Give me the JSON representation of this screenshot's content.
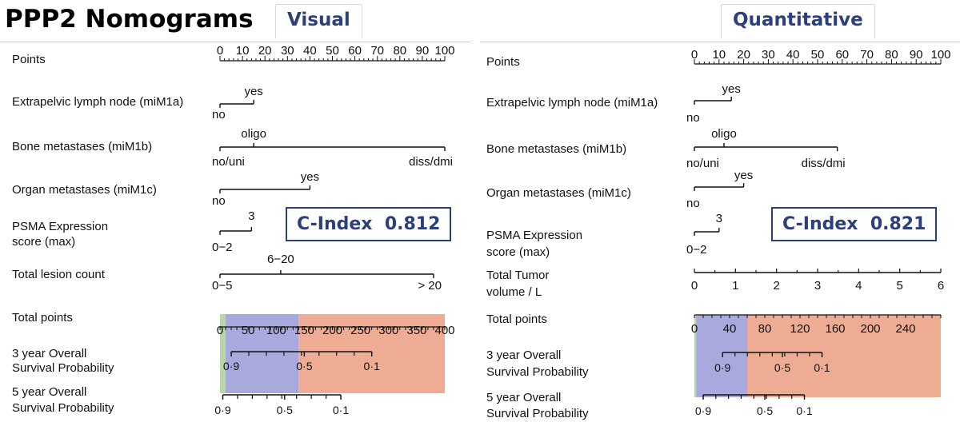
{
  "title": "PPP2 Nomograms",
  "panel_titles": {
    "visual": "Visual",
    "quantitative": "Quantitative"
  },
  "cindex": {
    "visual": {
      "label": "C-Index",
      "value": "0.812"
    },
    "quantitative": {
      "label": "C-Index",
      "value": "0.821"
    }
  },
  "colors": {
    "green": "#b7d7a3",
    "blue": "#a8a9dc",
    "orange": "#eeac95",
    "accent": "#2b3f7a"
  },
  "chart_data": [
    {
      "type": "table",
      "name": "Visual",
      "points_scale": {
        "min": 0,
        "max": 100,
        "ticks": [
          "0",
          "10",
          "20",
          "30",
          "40",
          "50",
          "60",
          "70",
          "80",
          "90",
          "100"
        ]
      },
      "variables": [
        {
          "label": "Extrapelvic lymph node (miM1a)",
          "levels": [
            {
              "label": "no",
              "points": 0
            },
            {
              "label": "yes",
              "points": 15
            }
          ]
        },
        {
          "label": "Bone metastases (miM1b)",
          "levels": [
            {
              "label": "no/uni",
              "points": 0
            },
            {
              "label": "oligo",
              "points": 15
            },
            {
              "label": "diss/dmi",
              "points": 100
            }
          ]
        },
        {
          "label": "Organ metastases (miM1c)",
          "levels": [
            {
              "label": "no",
              "points": 0
            },
            {
              "label": "yes",
              "points": 40
            }
          ]
        },
        {
          "label_lines": [
            "PSMA Expression",
            "score (max)"
          ],
          "levels": [
            {
              "label": "0−2",
              "points": 0
            },
            {
              "label": "3",
              "points": 14
            }
          ]
        },
        {
          "label": "Total lesion count",
          "levels": [
            {
              "label": "0−5",
              "points": 0
            },
            {
              "label": "6−20",
              "points": 27
            },
            {
              "label": "> 20",
              "points": 95
            }
          ]
        }
      ],
      "total_points": {
        "label": "Total points",
        "min": 0,
        "max": 400,
        "ticks": [
          "0",
          "50",
          "100",
          "150",
          "200",
          "250",
          "300",
          "350",
          "400"
        ]
      },
      "survival": [
        {
          "label_lines": [
            "3 year Overall",
            "Survival Probability"
          ],
          "labeled_ticks": [
            {
              "label": "0·9",
              "total": 20
            },
            {
              "label": "0·5",
              "total": 150
            },
            {
              "label": "0·1",
              "total": 270
            }
          ]
        },
        {
          "label_lines": [
            "5 year Overall",
            "Survival Probability"
          ],
          "labeled_ticks": [
            {
              "label": "0·9",
              "total": 5
            },
            {
              "label": "0·5",
              "total": 115
            },
            {
              "label": "0·1",
              "total": 215
            }
          ]
        }
      ],
      "risk_bands": [
        {
          "group": "green",
          "from": 0,
          "to": 10
        },
        {
          "group": "blue",
          "from": 10,
          "to": 140
        },
        {
          "group": "orange",
          "from": 140,
          "to": 400
        }
      ]
    },
    {
      "type": "table",
      "name": "Quantitative",
      "points_scale": {
        "min": 0,
        "max": 100,
        "ticks": [
          "0",
          "10",
          "20",
          "30",
          "40",
          "50",
          "60",
          "70",
          "80",
          "90",
          "100"
        ]
      },
      "variables": [
        {
          "label": "Extrapelvic lymph node (miM1a)",
          "levels": [
            {
              "label": "no",
              "points": 0
            },
            {
              "label": "yes",
              "points": 15
            }
          ]
        },
        {
          "label": "Bone metastases (miM1b)",
          "levels": [
            {
              "label": "no/uni",
              "points": 0
            },
            {
              "label": "oligo",
              "points": 12
            },
            {
              "label": "diss/dmi",
              "points": 58
            }
          ]
        },
        {
          "label": "Organ metastases (miM1c)",
          "levels": [
            {
              "label": "no",
              "points": 0
            },
            {
              "label": "yes",
              "points": 20
            }
          ]
        },
        {
          "label_lines": [
            "PSMA Expression",
            "score (max)"
          ],
          "levels": [
            {
              "label": "0−2",
              "points": 0
            },
            {
              "label": "3",
              "points": 10
            }
          ]
        }
      ],
      "continuous_variable": {
        "label_lines": [
          "Total Tumor",
          "volume / L"
        ],
        "min": 0,
        "max": 6,
        "ticks": [
          "0",
          "1",
          "2",
          "3",
          "4",
          "5",
          "6"
        ]
      },
      "total_points": {
        "label": "Total points",
        "min": 0,
        "max": 280,
        "ticks": [
          "0",
          "40",
          "80",
          "120",
          "160",
          "200",
          "240"
        ]
      },
      "survival": [
        {
          "label_lines": [
            "3 year Overall",
            "Survival Probability"
          ],
          "labeled_ticks": [
            {
              "label": "0·9",
              "total": 32
            },
            {
              "label": "0·5",
              "total": 100
            },
            {
              "label": "0·1",
              "total": 145
            }
          ]
        },
        {
          "label_lines": [
            "5 year Overall",
            "Survival Probability"
          ],
          "labeled_ticks": [
            {
              "label": "0·9",
              "total": 10
            },
            {
              "label": "0·5",
              "total": 80
            },
            {
              "label": "0·1",
              "total": 125
            }
          ]
        }
      ],
      "risk_bands": [
        {
          "group": "green",
          "from": 0,
          "to": 2
        },
        {
          "group": "blue",
          "from": 2,
          "to": 60
        },
        {
          "group": "orange",
          "from": 60,
          "to": 280
        }
      ]
    }
  ]
}
